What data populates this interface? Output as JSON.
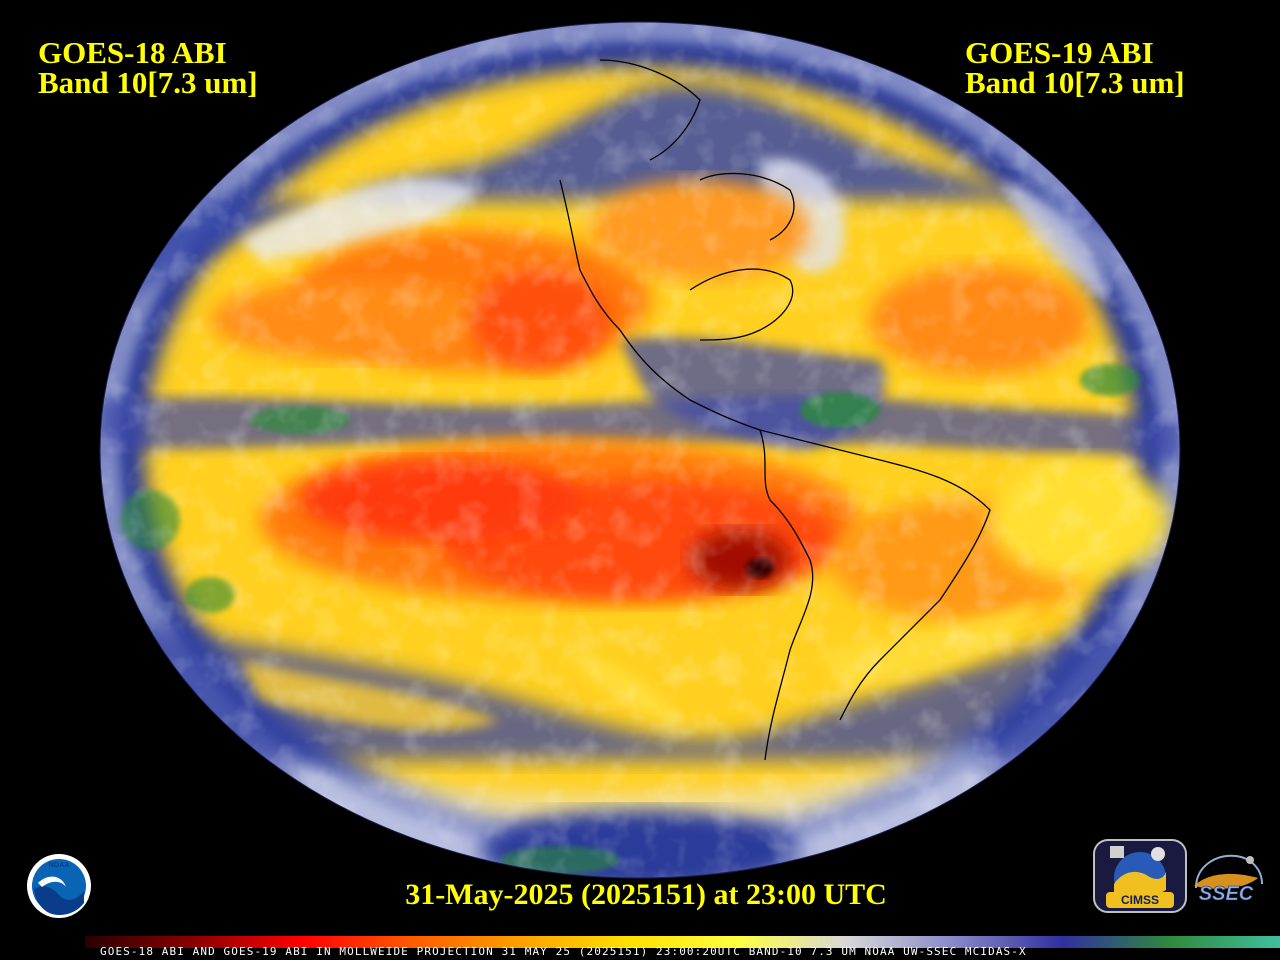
{
  "left_satellite": {
    "line1": "GOES-18 ABI",
    "line2": "Band 10[7.3 um]"
  },
  "right_satellite": {
    "line1": "GOES-19 ABI",
    "line2": "Band 10[7.3 um]"
  },
  "timestamp": "31-May-2025 (2025151) at 23:00 UTC",
  "footer": "GOES-18 ABI AND GOES-19 ABI IN MOLLWEIDE PROJECTION 31 MAY 25 (2025151) 23:00:20UTC BAND-10 7.3 UM NOAA UW-SSEC MCIDAS-X",
  "logos": {
    "noaa": "NOAA",
    "cimss": "CIMSS",
    "ssec": "SSEC"
  },
  "colors": {
    "label_yellow": "#ffff00",
    "background": "#000000",
    "colorbar_stops": [
      "#2a0000",
      "#8a0000",
      "#ff0000",
      "#ff5a00",
      "#ffa000",
      "#ffe000",
      "#ffff40",
      "#d8d8d8",
      "#8888c8",
      "#3030a0",
      "#2e8b3c",
      "#40c0a0"
    ]
  }
}
